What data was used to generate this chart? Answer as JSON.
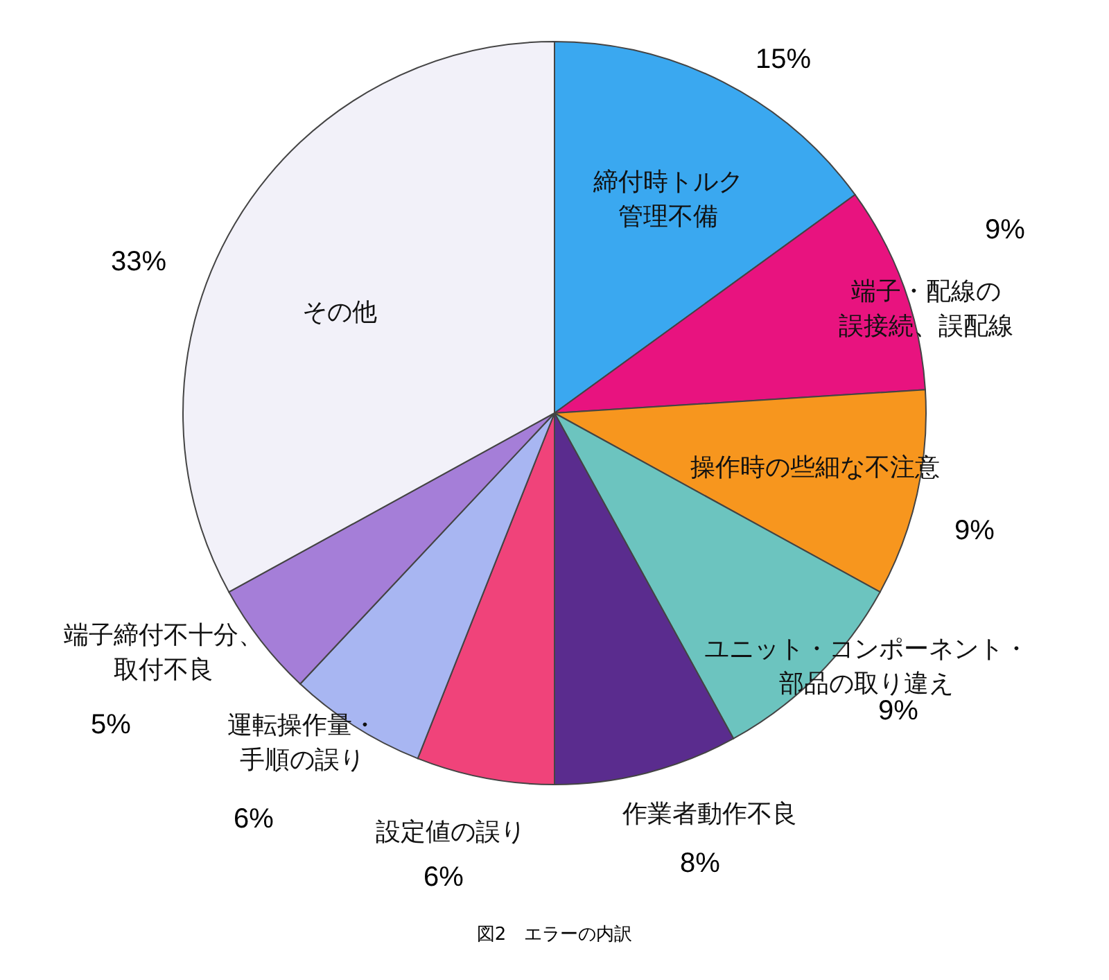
{
  "chart_data": {
    "type": "pie",
    "title": "図2　エラーの内訳",
    "categories": [
      "締付時トルク管理不備",
      "端子・配線の誤接続、誤配線",
      "操作時の些細な不注意",
      "ユニット・コンポーネント・部品の取り違え",
      "作業者動作不良",
      "設定値の誤り",
      "運転操作量・手順の誤り",
      "端子締付不十分、取付不良",
      "その他"
    ],
    "values": [
      15,
      9,
      9,
      9,
      8,
      6,
      6,
      5,
      33
    ],
    "value_labels": [
      "15%",
      "9%",
      "9%",
      "9%",
      "8%",
      "6%",
      "6%",
      "5%",
      "33%"
    ],
    "colors": [
      "#3aa8f0",
      "#e8137f",
      "#f7961e",
      "#6cc4bf",
      "#5a2c8e",
      "#f0437a",
      "#a8b6f2",
      "#a57ed8",
      "#f2f1f9"
    ]
  }
}
